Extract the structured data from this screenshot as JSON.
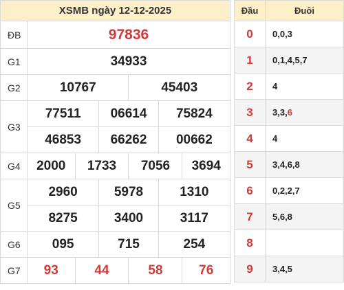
{
  "title": "XSMB ngày 12-12-2025",
  "prizes": [
    {
      "label": "ĐB",
      "values": [
        "97836"
      ]
    },
    {
      "label": "G1",
      "values": [
        "34933"
      ]
    },
    {
      "label": "G2",
      "values": [
        "10767",
        "45403"
      ]
    },
    {
      "label": "G3",
      "values": [
        "77511",
        "06614",
        "75824",
        "46853",
        "66262",
        "00662"
      ]
    },
    {
      "label": "G4",
      "values": [
        "2000",
        "1733",
        "7056",
        "3694"
      ]
    },
    {
      "label": "G5",
      "values": [
        "2960",
        "5978",
        "1310",
        "8275",
        "3400",
        "3117"
      ]
    },
    {
      "label": "G6",
      "values": [
        "095",
        "715",
        "254"
      ]
    },
    {
      "label": "G7",
      "values": [
        "93",
        "44",
        "58",
        "76"
      ]
    }
  ],
  "loto": {
    "head_label": "Đầu",
    "tail_label": "Đuôi",
    "rows": [
      {
        "head": "0",
        "tail": "0,0,3"
      },
      {
        "head": "1",
        "tail": "0,1,4,5,7"
      },
      {
        "head": "2",
        "tail": "4"
      },
      {
        "head": "3",
        "tail_prefix": "3,3,",
        "tail_highlight": "6"
      },
      {
        "head": "4",
        "tail": "4"
      },
      {
        "head": "5",
        "tail": "3,4,6,8"
      },
      {
        "head": "6",
        "tail": "0,2,2,7"
      },
      {
        "head": "7",
        "tail": "5,6,8"
      },
      {
        "head": "8",
        "tail": ""
      },
      {
        "head": "9",
        "tail": "3,4,5"
      }
    ]
  },
  "colors": {
    "header_bg": "#fdf0c8",
    "accent_red": "#d03a3a",
    "border": "#d9d9d9"
  }
}
